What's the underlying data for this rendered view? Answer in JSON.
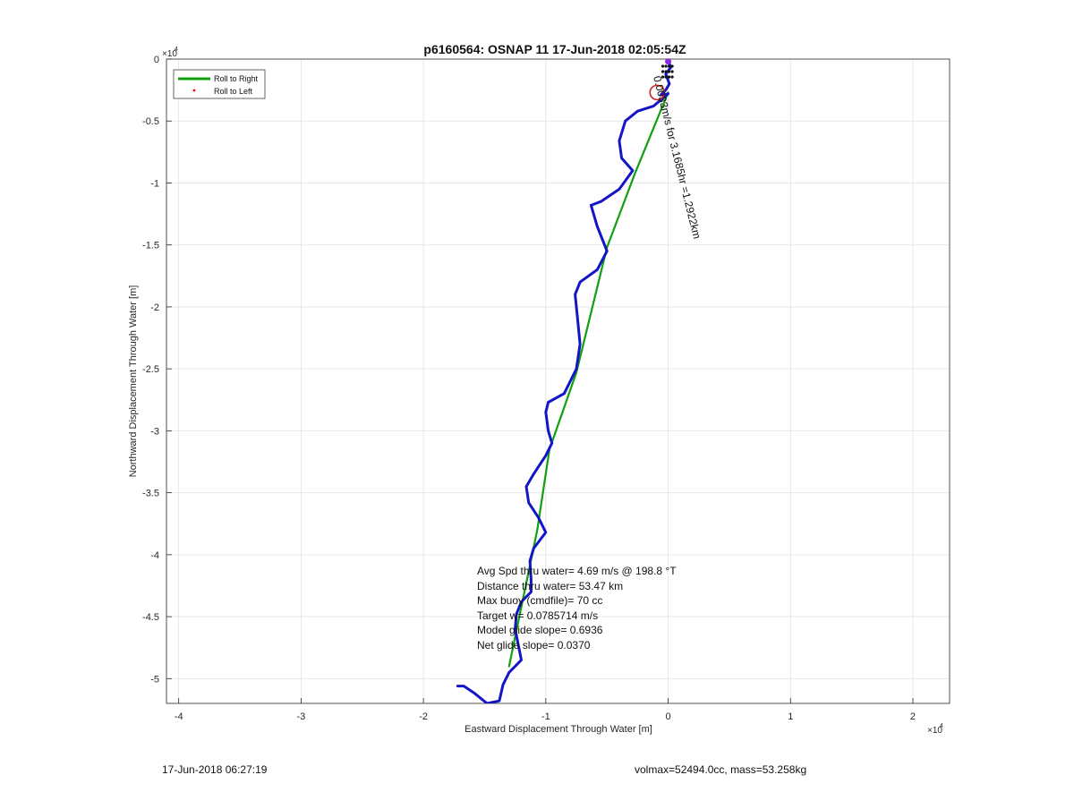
{
  "chart_data": {
    "type": "line",
    "title": "p6160564: OSNAP 11 17-Jun-2018 02:05:54Z",
    "xlabel": "Eastward Displacement Through Water [m]",
    "ylabel": "Northward Displacement Through Water [m]",
    "x_multiplier": "×10",
    "y_multiplier": "×10",
    "multiplier_exponent": "4",
    "xlim": [
      -4.1,
      2.3
    ],
    "ylim": [
      -5.2,
      0
    ],
    "xticks": [
      -4,
      -3,
      -2,
      -1,
      0,
      1,
      2
    ],
    "xtick_labels": [
      "-4",
      "-3",
      "-2",
      "-1",
      "0",
      "1",
      "2"
    ],
    "yticks": [
      0,
      -0.5,
      -1,
      -1.5,
      -2,
      -2.5,
      -3,
      -3.5,
      -4,
      -4.5,
      -5
    ],
    "ytick_labels": [
      "0",
      "-0.5",
      "-1",
      "-1.5",
      "-2",
      "-2.5",
      "-3",
      "-3.5",
      "-4",
      "-4.5",
      "-5"
    ],
    "grid": true,
    "legend_position": "top-left",
    "legend": [
      {
        "name": "Roll to Right",
        "color": "#10a010",
        "style": "line"
      },
      {
        "name": "Roll to Left",
        "color": "#ff0000",
        "style": "dot"
      }
    ],
    "series": [
      {
        "name": "Roll to Right",
        "color": "#10a010",
        "x": [
          0,
          -0.27,
          -0.5,
          -0.75,
          -0.97,
          -1.07,
          -1.3
        ],
        "y": [
          -0.27,
          -0.92,
          -1.52,
          -2.53,
          -3.15,
          -3.8,
          -4.9
        ]
      },
      {
        "name": "",
        "color": "#1515c8",
        "x": [
          0,
          0.02,
          -0.02,
          0.01,
          -0.02,
          -0.06,
          0.0,
          -0.12,
          -0.25,
          -0.35,
          -0.4,
          -0.38,
          -0.29,
          -0.4,
          -0.55,
          -0.63,
          -0.58,
          -0.52,
          -0.5,
          -0.58,
          -0.72,
          -0.76,
          -0.74,
          -0.72,
          -0.75,
          -0.85,
          -0.98,
          -1.0,
          -0.98,
          -0.95,
          -1.0,
          -1.1,
          -1.16,
          -1.14,
          -1.06,
          -1.0,
          -1.1,
          -1.13,
          -1.12,
          -1.12,
          -1.2,
          -1.24,
          -1.25,
          -1.2,
          -1.3,
          -1.35,
          -1.38,
          -1.48,
          -1.58,
          -1.67,
          -1.72
        ],
        "y": [
          0,
          -0.07,
          -0.12,
          -0.2,
          -0.25,
          -0.29,
          -0.28,
          -0.38,
          -0.42,
          -0.5,
          -0.66,
          -0.8,
          -0.9,
          -1.05,
          -1.15,
          -1.18,
          -1.35,
          -1.5,
          -1.55,
          -1.7,
          -1.8,
          -1.9,
          -2.1,
          -2.3,
          -2.5,
          -2.7,
          -2.77,
          -2.85,
          -3.0,
          -3.1,
          -3.2,
          -3.35,
          -3.45,
          -3.58,
          -3.7,
          -3.82,
          -3.95,
          -4.05,
          -4.2,
          -4.3,
          -4.38,
          -4.48,
          -4.6,
          -4.85,
          -4.95,
          -5.05,
          -5.18,
          -5.2,
          -5.12,
          -5.06,
          -5.06
        ]
      }
    ],
    "markers": [
      {
        "name": "start-circle",
        "x": -0.09,
        "y": -0.27,
        "color": "#cc2222"
      },
      {
        "name": "purple-marker",
        "x": 0.0,
        "y": -0.02,
        "color": "#8a2be2"
      }
    ],
    "annotations": {
      "track_label": "0.0033m/s for 3.1685hr =1.2922km",
      "track_label_position": "along-green-line-top-right",
      "dot_cluster": "top-right-near-origin",
      "stats": [
        "Avg Spd thru water=  4.69 m/s @ 198.8 °T",
        "Distance thru water= 53.47 km",
        "Max buoy (cmdfile)= 70 cc",
        "Target w= 0.0785714 m/s",
        "Model glide slope= 0.6936",
        "Net glide slope= 0.0370"
      ]
    }
  },
  "footer": {
    "left": "17-Jun-2018 06:27:19",
    "right": "volmax=52494.0cc, mass=53.258kg"
  }
}
